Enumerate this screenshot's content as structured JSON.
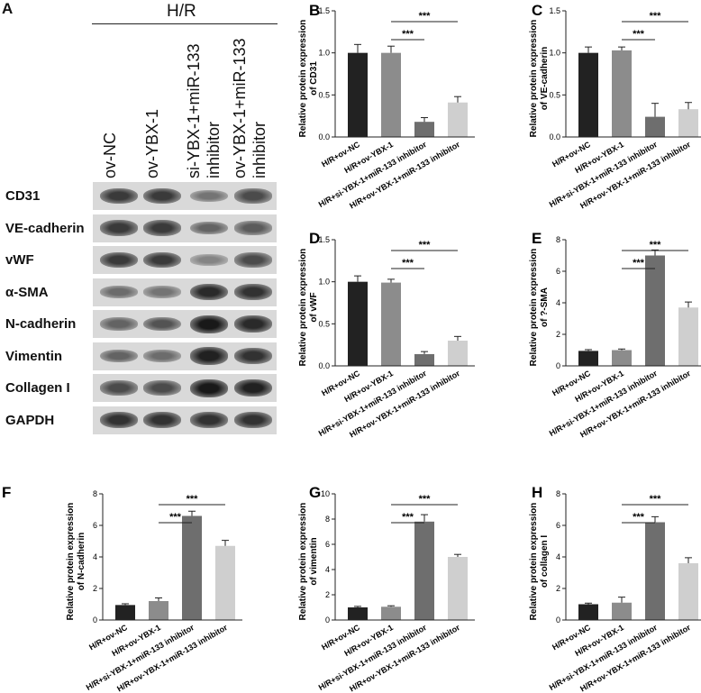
{
  "panels": {
    "a": "A"
  },
  "blot": {
    "group_label": "H/R",
    "lanes": [
      {
        "lines": [
          "ov-NC"
        ]
      },
      {
        "lines": [
          "ov-YBX-1"
        ]
      },
      {
        "lines": [
          "si-YBX-1+miR-133",
          "inhibitor"
        ]
      },
      {
        "lines": [
          "ov-YBX-1+miR-133",
          "inhibitor"
        ]
      }
    ],
    "rows": [
      {
        "label": "CD31",
        "intensity": [
          0.8,
          0.8,
          0.45,
          0.7
        ]
      },
      {
        "label": "VE-cadherin",
        "intensity": [
          0.8,
          0.8,
          0.55,
          0.6
        ]
      },
      {
        "label": "vWF",
        "intensity": [
          0.8,
          0.8,
          0.35,
          0.7
        ]
      },
      {
        "label": "α-SMA",
        "intensity": [
          0.5,
          0.45,
          0.9,
          0.85
        ]
      },
      {
        "label": "N-cadherin",
        "intensity": [
          0.55,
          0.65,
          1.0,
          0.9
        ]
      },
      {
        "label": "Vimentin",
        "intensity": [
          0.55,
          0.5,
          0.95,
          0.85
        ]
      },
      {
        "label": "Collagen I",
        "intensity": [
          0.7,
          0.7,
          1.0,
          0.95
        ]
      },
      {
        "label": "GAPDH",
        "intensity": [
          0.85,
          0.85,
          0.85,
          0.85
        ]
      }
    ]
  },
  "chart_data": [
    {
      "panel": "B",
      "type": "bar",
      "ylabel_lines": [
        "Relative protein expression",
        "of CD31"
      ],
      "categories": [
        "H/R+ov-NC",
        "H/R+ov-YBX-1",
        "H/R+si-YBX-1+miR-133 inhibitor",
        "H/R+ov-YBX-1+miR-133 inhibitor"
      ],
      "values": [
        1.0,
        1.0,
        0.18,
        0.41
      ],
      "errors": [
        0.1,
        0.08,
        0.05,
        0.07
      ],
      "colors": [
        "#222222",
        "#8c8c8c",
        "#6e6e6e",
        "#cfcfcf"
      ],
      "ylim": [
        0,
        1.5
      ],
      "yticks": [
        "0.0",
        "0.5",
        "1.0",
        "1.5"
      ],
      "significance": [
        {
          "from": 1,
          "to": 2,
          "label": "***"
        },
        {
          "from": 1,
          "to": 3,
          "label": "***"
        }
      ]
    },
    {
      "panel": "C",
      "type": "bar",
      "ylabel_lines": [
        "Relative protein expression",
        "of VE-cadherin"
      ],
      "categories": [
        "H/R+ov-NC",
        "H/R+ov-YBX-1",
        "H/R+si-YBX-1+miR-133 inhibitor",
        "H/R+ov-YBX-1+miR-133 inhibitor"
      ],
      "values": [
        1.0,
        1.03,
        0.24,
        0.33
      ],
      "errors": [
        0.07,
        0.04,
        0.16,
        0.08
      ],
      "colors": [
        "#222222",
        "#8c8c8c",
        "#6e6e6e",
        "#cfcfcf"
      ],
      "ylim": [
        0,
        1.5
      ],
      "yticks": [
        "0.0",
        "0.5",
        "1.0",
        "1.5"
      ],
      "significance": [
        {
          "from": 1,
          "to": 2,
          "label": "***"
        },
        {
          "from": 1,
          "to": 3,
          "label": "***"
        }
      ]
    },
    {
      "panel": "D",
      "type": "bar",
      "ylabel_lines": [
        "Relative protein expression",
        "of vWF"
      ],
      "categories": [
        "H/R+ov-NC",
        "H/R+ov-YBX-1",
        "H/R+si-YBX-1+miR-133 inhibitor",
        "H/R+ov-YBX-1+miR-133 inhibitor"
      ],
      "values": [
        1.0,
        0.99,
        0.14,
        0.3
      ],
      "errors": [
        0.07,
        0.04,
        0.03,
        0.05
      ],
      "colors": [
        "#222222",
        "#8c8c8c",
        "#6e6e6e",
        "#cfcfcf"
      ],
      "ylim": [
        0,
        1.5
      ],
      "yticks": [
        "0.0",
        "0.5",
        "1.0",
        "1.5"
      ],
      "significance": [
        {
          "from": 1,
          "to": 2,
          "label": "***"
        },
        {
          "from": 1,
          "to": 3,
          "label": "***"
        }
      ]
    },
    {
      "panel": "E",
      "type": "bar",
      "ylabel_lines": [
        "Relative protein expression",
        "of ?-SMA"
      ],
      "categories": [
        "H/R+ov-NC",
        "H/R+ov-YBX-1",
        "H/R+si-YBX-1+miR-133 inhibitor",
        "H/R+ov-YBX-1+miR-133 inhibitor"
      ],
      "values": [
        0.95,
        1.0,
        7.0,
        3.7
      ],
      "errors": [
        0.08,
        0.07,
        0.35,
        0.35
      ],
      "colors": [
        "#222222",
        "#8c8c8c",
        "#6e6e6e",
        "#cfcfcf"
      ],
      "ylim": [
        0,
        8
      ],
      "yticks": [
        "0",
        "2",
        "4",
        "6",
        "8"
      ],
      "significance": [
        {
          "from": 1,
          "to": 2,
          "label": "***"
        },
        {
          "from": 1,
          "to": 3,
          "label": "***"
        }
      ]
    },
    {
      "panel": "F",
      "type": "bar",
      "ylabel_lines": [
        "Relative protein expression",
        "of N-cadherin"
      ],
      "categories": [
        "H/R+ov-NC",
        "H/R+ov-YBX-1",
        "H/R+si-YBX-1+miR-133 inhibitor",
        "H/R+ov-YBX-1+miR-133 inhibitor"
      ],
      "values": [
        0.95,
        1.2,
        6.6,
        4.7
      ],
      "errors": [
        0.08,
        0.2,
        0.3,
        0.35
      ],
      "colors": [
        "#222222",
        "#8c8c8c",
        "#6e6e6e",
        "#cfcfcf"
      ],
      "ylim": [
        0,
        8
      ],
      "yticks": [
        "0",
        "2",
        "4",
        "6",
        "8"
      ],
      "significance": [
        {
          "from": 1,
          "to": 2,
          "label": "***"
        },
        {
          "from": 1,
          "to": 3,
          "label": "***"
        }
      ]
    },
    {
      "panel": "G",
      "type": "bar",
      "ylabel_lines": [
        "Relative protein expression",
        "of vimentin"
      ],
      "categories": [
        "H/R+ov-NC",
        "H/R+ov-YBX-1",
        "H/R+si-YBX-1+miR-133 inhibitor",
        "H/R+ov-YBX-1+miR-133 inhibitor"
      ],
      "values": [
        1.0,
        1.05,
        7.8,
        5.0
      ],
      "errors": [
        0.08,
        0.08,
        0.55,
        0.2
      ],
      "colors": [
        "#222222",
        "#8c8c8c",
        "#6e6e6e",
        "#cfcfcf"
      ],
      "ylim": [
        0,
        10
      ],
      "yticks": [
        "0",
        "2",
        "4",
        "6",
        "8",
        "10"
      ],
      "significance": [
        {
          "from": 1,
          "to": 2,
          "label": "***"
        },
        {
          "from": 1,
          "to": 3,
          "label": "***"
        }
      ]
    },
    {
      "panel": "H",
      "type": "bar",
      "ylabel_lines": [
        "Relative protein expression",
        "of collagen I"
      ],
      "categories": [
        "H/R+ov-NC",
        "H/R+ov-YBX-1",
        "H/R+si-YBX-1+miR-133 inhibitor",
        "H/R+ov-YBX-1+miR-133 inhibitor"
      ],
      "values": [
        1.0,
        1.1,
        6.2,
        3.6
      ],
      "errors": [
        0.07,
        0.35,
        0.35,
        0.35
      ],
      "colors": [
        "#222222",
        "#8c8c8c",
        "#6e6e6e",
        "#cfcfcf"
      ],
      "ylim": [
        0,
        8
      ],
      "yticks": [
        "0",
        "2",
        "4",
        "6",
        "8"
      ],
      "significance": [
        {
          "from": 1,
          "to": 2,
          "label": "***"
        },
        {
          "from": 1,
          "to": 3,
          "label": "***"
        }
      ]
    }
  ]
}
